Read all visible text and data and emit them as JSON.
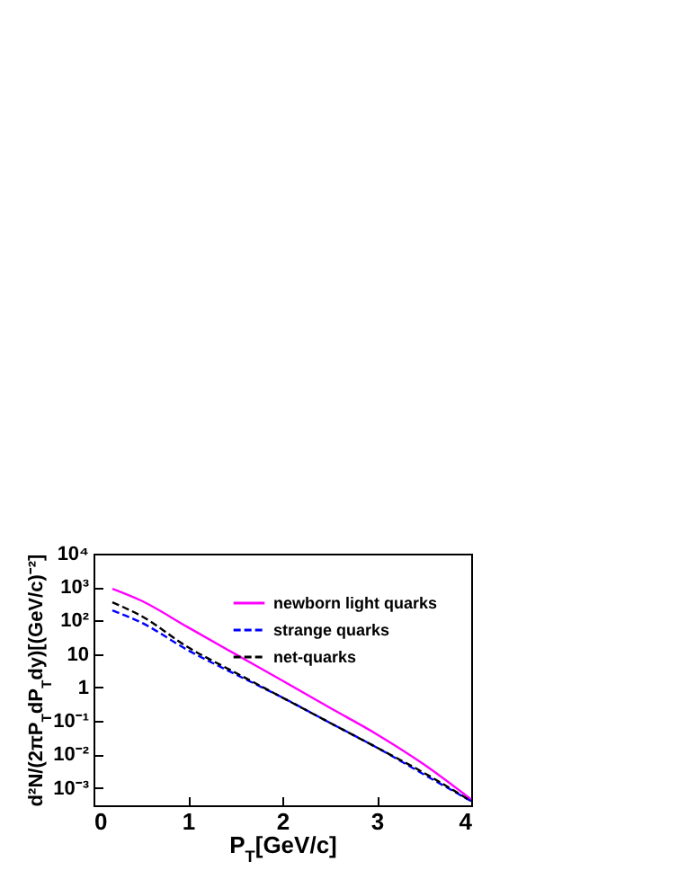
{
  "chart_data": {
    "type": "line",
    "xlabel": "P$_{T}$[GeV/c]",
    "ylabel": "d²N/(2πP$_{T}$dP$_{T}$dy)[(GeV/c)⁻²]",
    "x": [
      0.2,
      0.5,
      1,
      1.5,
      2,
      2.5,
      3,
      3.5,
      4
    ],
    "series": [
      {
        "name": "newborn light quarks",
        "color": "#ff00ff",
        "line_style": "solid",
        "values": [
          890,
          400,
          63,
          10,
          1.6,
          0.25,
          0.04,
          0.005,
          0.00045
        ]
      },
      {
        "name": "strange quarks",
        "color": "#0000ff",
        "line_style": "dashed",
        "values": [
          200,
          89,
          13,
          2.5,
          0.5,
          0.089,
          0.016,
          0.0025,
          0.0004
        ]
      },
      {
        "name": "net-quarks",
        "color": "#000000",
        "line_style": "dashed",
        "values": [
          350,
          140,
          16,
          2.8,
          0.5,
          0.089,
          0.016,
          0.0028,
          0.0004
        ]
      }
    ],
    "xlim": [
      0,
      4
    ],
    "xticks": [
      0,
      1,
      2,
      3,
      4
    ],
    "ylim": [
      0.0003,
      10000
    ],
    "yticks": [
      {
        "value": 0.001,
        "label": "10⁻³"
      },
      {
        "value": 0.01,
        "label": "10⁻²"
      },
      {
        "value": 0.1,
        "label": "10⁻¹"
      },
      {
        "value": 1,
        "label": "1"
      },
      {
        "value": 10,
        "label": "10"
      },
      {
        "value": 100,
        "label": "10²"
      },
      {
        "value": 1000,
        "label": "10³"
      },
      {
        "value": 10000,
        "label": "10⁴"
      }
    ],
    "log": "y",
    "grid": false,
    "legend": "top right",
    "marker": "none"
  }
}
